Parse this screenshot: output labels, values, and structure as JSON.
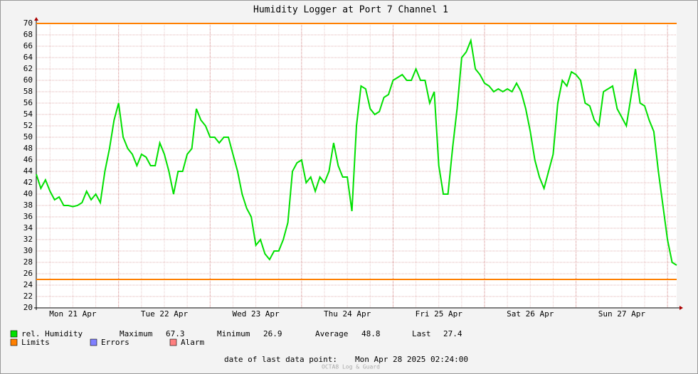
{
  "chart_data": {
    "type": "line",
    "title": "Humidity Logger at Port 7 Channel 1",
    "categories": [
      null,
      null,
      null,
      null,
      null,
      null,
      null,
      null,
      "Mon 21 Apr",
      null,
      null,
      null,
      null,
      null,
      null,
      null,
      null,
      null,
      null,
      null,
      null,
      null,
      null,
      null,
      null,
      null,
      null,
      null,
      "Tue 22 Apr",
      null,
      null,
      null,
      null,
      null,
      null,
      null,
      null,
      null,
      null,
      null,
      null,
      null,
      null,
      null,
      null,
      null,
      null,
      null,
      "Wed 23 Apr",
      null,
      null,
      null,
      null,
      null,
      null,
      null,
      null,
      null,
      null,
      null,
      null,
      null,
      null,
      null,
      null,
      null,
      null,
      null,
      "Thu 24 Apr",
      null,
      null,
      null,
      null,
      null,
      null,
      null,
      null,
      null,
      null,
      null,
      null,
      null,
      null,
      null,
      null,
      null,
      null,
      null,
      "Fri 25 Apr",
      null,
      null,
      null,
      null,
      null,
      null,
      null,
      null,
      null,
      null,
      null,
      null,
      null,
      null,
      null,
      null,
      null,
      null,
      null,
      "Sat 26 Apr",
      null,
      null,
      null,
      null,
      null,
      null,
      null,
      null,
      null,
      null,
      null,
      null,
      null,
      null,
      null,
      null,
      null,
      null,
      null,
      "Sun 27 Apr",
      null,
      null,
      null,
      null,
      null,
      null,
      null,
      null,
      null,
      null,
      null,
      null
    ],
    "series": [
      {
        "name": "rel. Humidity",
        "color": "#00e000",
        "values": [
          43.5,
          41,
          42.5,
          40.5,
          39,
          39.5,
          38,
          38,
          37.8,
          38,
          38.5,
          40.5,
          39,
          40,
          38.5,
          44,
          48,
          53,
          56,
          50,
          48,
          47,
          45,
          47,
          46.5,
          45,
          45,
          49,
          47,
          44,
          40,
          44,
          44,
          47,
          48,
          55,
          53,
          52,
          50,
          50,
          49,
          50,
          50,
          47,
          44,
          40,
          37.5,
          36,
          31,
          32,
          29.5,
          28.5,
          30,
          30,
          32,
          35,
          44,
          45.5,
          46,
          42,
          43,
          40.5,
          43,
          42,
          44,
          49,
          45,
          43,
          43,
          37,
          52,
          59,
          58.5,
          55,
          54,
          54.5,
          57,
          57.5,
          60,
          60.5,
          61,
          60,
          60,
          62,
          60,
          60,
          56,
          58,
          45,
          40,
          40,
          48,
          55,
          64,
          65,
          67,
          62,
          61,
          59.5,
          59,
          58,
          58.5,
          58,
          58.5,
          58,
          59.5,
          58,
          55,
          51,
          46,
          43,
          41,
          44,
          47,
          56,
          60,
          59,
          61.5,
          61,
          60,
          56,
          55.5,
          53,
          52,
          58,
          58.5,
          59,
          55,
          53.5,
          52,
          57,
          62,
          56,
          55.5,
          53,
          51,
          44,
          38,
          32,
          28,
          27.5
        ]
      }
    ],
    "ylim": [
      20,
      70
    ],
    "yticks": [
      20,
      22,
      24,
      26,
      28,
      30,
      32,
      34,
      36,
      38,
      40,
      42,
      44,
      46,
      48,
      50,
      52,
      54,
      56,
      58,
      60,
      62,
      64,
      66,
      68,
      70
    ],
    "grid": true,
    "limits": {
      "name": "Limits",
      "color": "#ff7f00",
      "values": [
        70,
        25
      ]
    },
    "legend_extra": [
      {
        "name": "Errors",
        "color": "#7f7fff"
      },
      {
        "name": "Alarm",
        "color": "#ff7f7f"
      }
    ],
    "stats": [
      {
        "label": "Maximum",
        "value": 67.3
      },
      {
        "label": "Minimum",
        "value": 26.9
      },
      {
        "label": "Average",
        "value": 48.8
      },
      {
        "label": "Last",
        "value": 27.4
      }
    ],
    "footer_label": "date of last data point:",
    "footer_value": "Mon Apr 28 2025 02:24:00",
    "watermark": "OCTA8 Log & Guard"
  }
}
